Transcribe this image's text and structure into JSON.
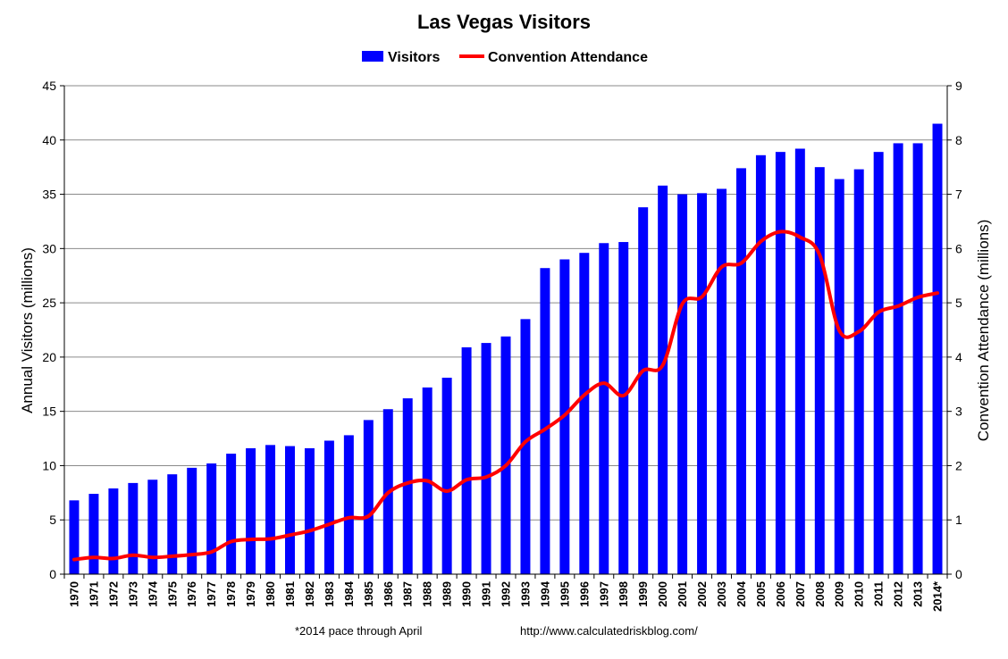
{
  "chart_data": {
    "type": "bar",
    "title": "Las Vegas Visitors",
    "ylabel": "Annual Visitors (millions)",
    "y2label": "Convention Attendance (millions)",
    "ylim": [
      0,
      45
    ],
    "y2lim": [
      0,
      9
    ],
    "yticks": [
      "0",
      "5",
      "10",
      "15",
      "20",
      "25",
      "30",
      "35",
      "40",
      "45"
    ],
    "y2ticks": [
      "0",
      "1",
      "2",
      "3",
      "4",
      "5",
      "6",
      "7",
      "8",
      "9"
    ],
    "grid": "horizontal",
    "legend_position": "top",
    "categories": [
      "1970",
      "1971",
      "1972",
      "1973",
      "1974",
      "1975",
      "1976",
      "1977",
      "1978",
      "1979",
      "1980",
      "1981",
      "1982",
      "1983",
      "1984",
      "1985",
      "1986",
      "1987",
      "1988",
      "1989",
      "1990",
      "1991",
      "1992",
      "1993",
      "1994",
      "1995",
      "1996",
      "1997",
      "1998",
      "1999",
      "2000",
      "2001",
      "2002",
      "2003",
      "2004",
      "2005",
      "2006",
      "2007",
      "2008",
      "2009",
      "2010",
      "2011",
      "2012",
      "2013",
      "2014*"
    ],
    "series": [
      {
        "name": "Visitors",
        "type": "bar",
        "axis": "left",
        "color": "#0000ff",
        "values": [
          6.8,
          7.4,
          7.9,
          8.4,
          8.7,
          9.2,
          9.8,
          10.2,
          11.1,
          11.6,
          11.9,
          11.8,
          11.6,
          12.3,
          12.8,
          14.2,
          15.2,
          16.2,
          17.2,
          18.1,
          20.9,
          21.3,
          21.9,
          23.5,
          28.2,
          29.0,
          29.6,
          30.5,
          30.6,
          33.8,
          35.8,
          35.0,
          35.1,
          35.5,
          37.4,
          38.6,
          38.9,
          39.2,
          37.5,
          36.4,
          37.3,
          38.9,
          39.7,
          39.7,
          41.5
        ]
      },
      {
        "name": "Convention Attendance",
        "type": "line",
        "axis": "right",
        "color": "#ff0000",
        "values": [
          0.27,
          0.31,
          0.29,
          0.35,
          0.31,
          0.33,
          0.36,
          0.41,
          0.6,
          0.64,
          0.65,
          0.72,
          0.8,
          0.92,
          1.04,
          1.07,
          1.5,
          1.68,
          1.72,
          1.53,
          1.74,
          1.79,
          2.0,
          2.44,
          2.67,
          2.93,
          3.3,
          3.52,
          3.29,
          3.75,
          3.85,
          4.98,
          5.11,
          5.66,
          5.73,
          6.13,
          6.31,
          6.21,
          5.88,
          4.49,
          4.47,
          4.83,
          4.94,
          5.1,
          5.18
        ]
      }
    ],
    "annotations": [
      "*2014 pace through April",
      "http://www.calculatedriskblog.com/"
    ]
  }
}
